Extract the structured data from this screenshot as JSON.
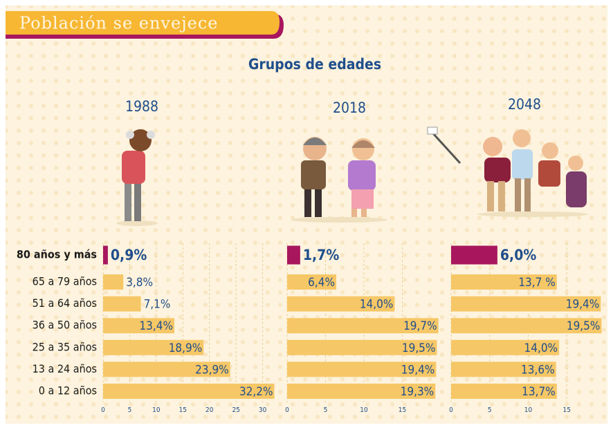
{
  "header": {
    "title": "Población se envejece"
  },
  "subtitle": "Grupos de edades",
  "chart_data": [
    {
      "type": "bar",
      "title": "1988",
      "categories": [
        "80 años y más",
        "65 a 79 años",
        "51 a 64 años",
        "36 a 50 años",
        "25 a 35 años",
        "13 a 24 años",
        "0 a 12 años"
      ],
      "values": [
        0.9,
        3.8,
        7.1,
        13.4,
        18.9,
        23.9,
        32.2
      ],
      "value_labels": [
        "0,9%",
        "3,8%",
        "7,1%",
        "13,4%",
        "18,9%",
        "23,9%",
        "32,2%"
      ],
      "colors": [
        "#a8175e",
        "#f6c766",
        "#f6c766",
        "#f6c766",
        "#f6c766",
        "#f6c766",
        "#f6c766"
      ],
      "xlim": [
        0,
        32
      ],
      "xticks": [
        0,
        5,
        10,
        15,
        20,
        25,
        30
      ],
      "grid": true
    },
    {
      "type": "bar",
      "title": "2018",
      "values": [
        1.7,
        6.4,
        14.0,
        19.7,
        19.5,
        19.4,
        19.3
      ],
      "value_labels": [
        "1,7%",
        "6,4%",
        "14,0%",
        "19,7%",
        "19,5%",
        "19,4%",
        "19,3%"
      ],
      "colors": [
        "#a8175e",
        "#f6c766",
        "#f6c766",
        "#f6c766",
        "#f6c766",
        "#f6c766",
        "#f6c766"
      ],
      "xlim": [
        0,
        20
      ],
      "xticks": [
        0,
        5,
        10,
        15
      ],
      "grid": true
    },
    {
      "type": "bar",
      "title": "2048",
      "values": [
        6.0,
        13.7,
        19.4,
        19.5,
        14.0,
        13.6,
        13.7
      ],
      "value_labels": [
        "6,0%",
        "13,7 %",
        "19,4%",
        "19,5%",
        "14,0%",
        "13,6%",
        "13,7%"
      ],
      "colors": [
        "#a8175e",
        "#f6c766",
        "#f6c766",
        "#f6c766",
        "#f6c766",
        "#f6c766",
        "#f6c766"
      ],
      "xlim": [
        0,
        20
      ],
      "xticks": [
        0,
        5,
        10,
        15
      ],
      "grid": true
    }
  ]
}
